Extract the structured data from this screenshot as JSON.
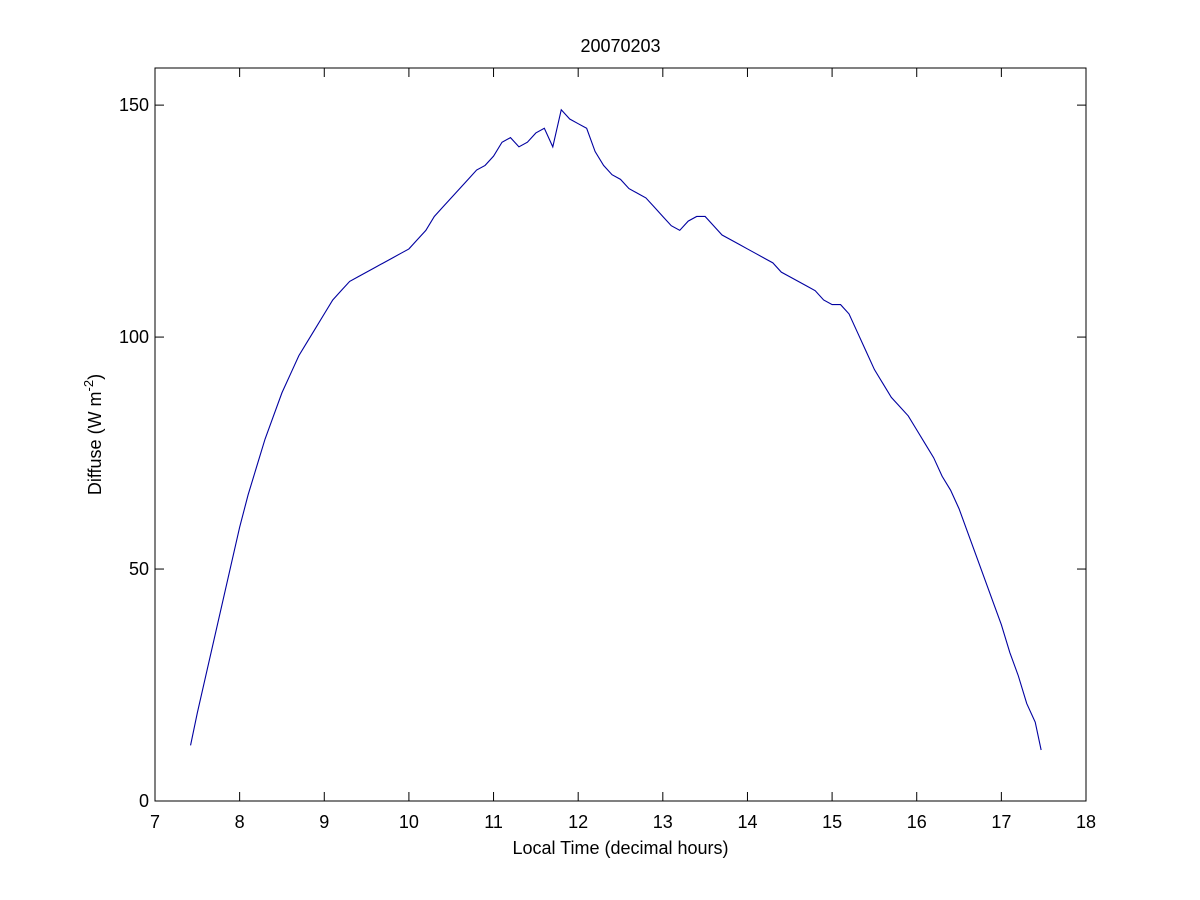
{
  "chart_data": {
    "type": "line",
    "title": "20070203",
    "xlabel": "Local Time (decimal hours)",
    "ylabel": {
      "prefix": "Diffuse (W m",
      "superscript": "-2",
      "suffix": ")"
    },
    "xlim": [
      7,
      18
    ],
    "ylim": [
      0,
      158
    ],
    "xticks": [
      7,
      8,
      9,
      10,
      11,
      12,
      13,
      14,
      15,
      16,
      17,
      18
    ],
    "yticks": [
      0,
      50,
      100,
      150
    ],
    "grid": false,
    "line_color": "#0000a0",
    "series": [
      {
        "x": [
          7.42,
          7.5,
          7.6,
          7.7,
          7.8,
          7.9,
          8.0,
          8.1,
          8.2,
          8.3,
          8.4,
          8.5,
          8.6,
          8.7,
          8.8,
          8.9,
          9.0,
          9.1,
          9.2,
          9.3,
          9.4,
          9.5,
          9.6,
          9.7,
          9.8,
          9.9,
          10.0,
          10.1,
          10.2,
          10.3,
          10.4,
          10.5,
          10.6,
          10.7,
          10.8,
          10.9,
          11.0,
          11.1,
          11.2,
          11.3,
          11.4,
          11.5,
          11.6,
          11.7,
          11.8,
          11.9,
          12.0,
          12.1,
          12.2,
          12.3,
          12.4,
          12.5,
          12.6,
          12.7,
          12.8,
          12.9,
          13.0,
          13.1,
          13.2,
          13.3,
          13.4,
          13.5,
          13.6,
          13.7,
          13.8,
          13.9,
          14.0,
          14.1,
          14.2,
          14.3,
          14.4,
          14.5,
          14.6,
          14.7,
          14.8,
          14.9,
          15.0,
          15.1,
          15.2,
          15.3,
          15.4,
          15.5,
          15.6,
          15.7,
          15.8,
          15.9,
          16.0,
          16.1,
          16.2,
          16.3,
          16.4,
          16.5,
          16.6,
          16.7,
          16.8,
          16.9,
          17.0,
          17.1,
          17.2,
          17.3,
          17.4,
          17.47
        ],
        "y": [
          12,
          19,
          27,
          35,
          43,
          51,
          59,
          66,
          72,
          78,
          83,
          88,
          92,
          96,
          99,
          102,
          105,
          108,
          110,
          112,
          113,
          114,
          115,
          116,
          117,
          118,
          119,
          121,
          123,
          126,
          128,
          130,
          132,
          134,
          136,
          137,
          139,
          142,
          143,
          141,
          142,
          144,
          145,
          141,
          149,
          147,
          146,
          145,
          140,
          137,
          135,
          134,
          132,
          131,
          130,
          128,
          126,
          124,
          123,
          125,
          126,
          126,
          124,
          122,
          121,
          120,
          119,
          118,
          117,
          116,
          114,
          113,
          112,
          111,
          110,
          108,
          107,
          107,
          105,
          101,
          97,
          93,
          90,
          87,
          85,
          83,
          80,
          77,
          74,
          70,
          67,
          63,
          58,
          53,
          48,
          43,
          38,
          32,
          27,
          21,
          17,
          11
        ]
      }
    ]
  }
}
